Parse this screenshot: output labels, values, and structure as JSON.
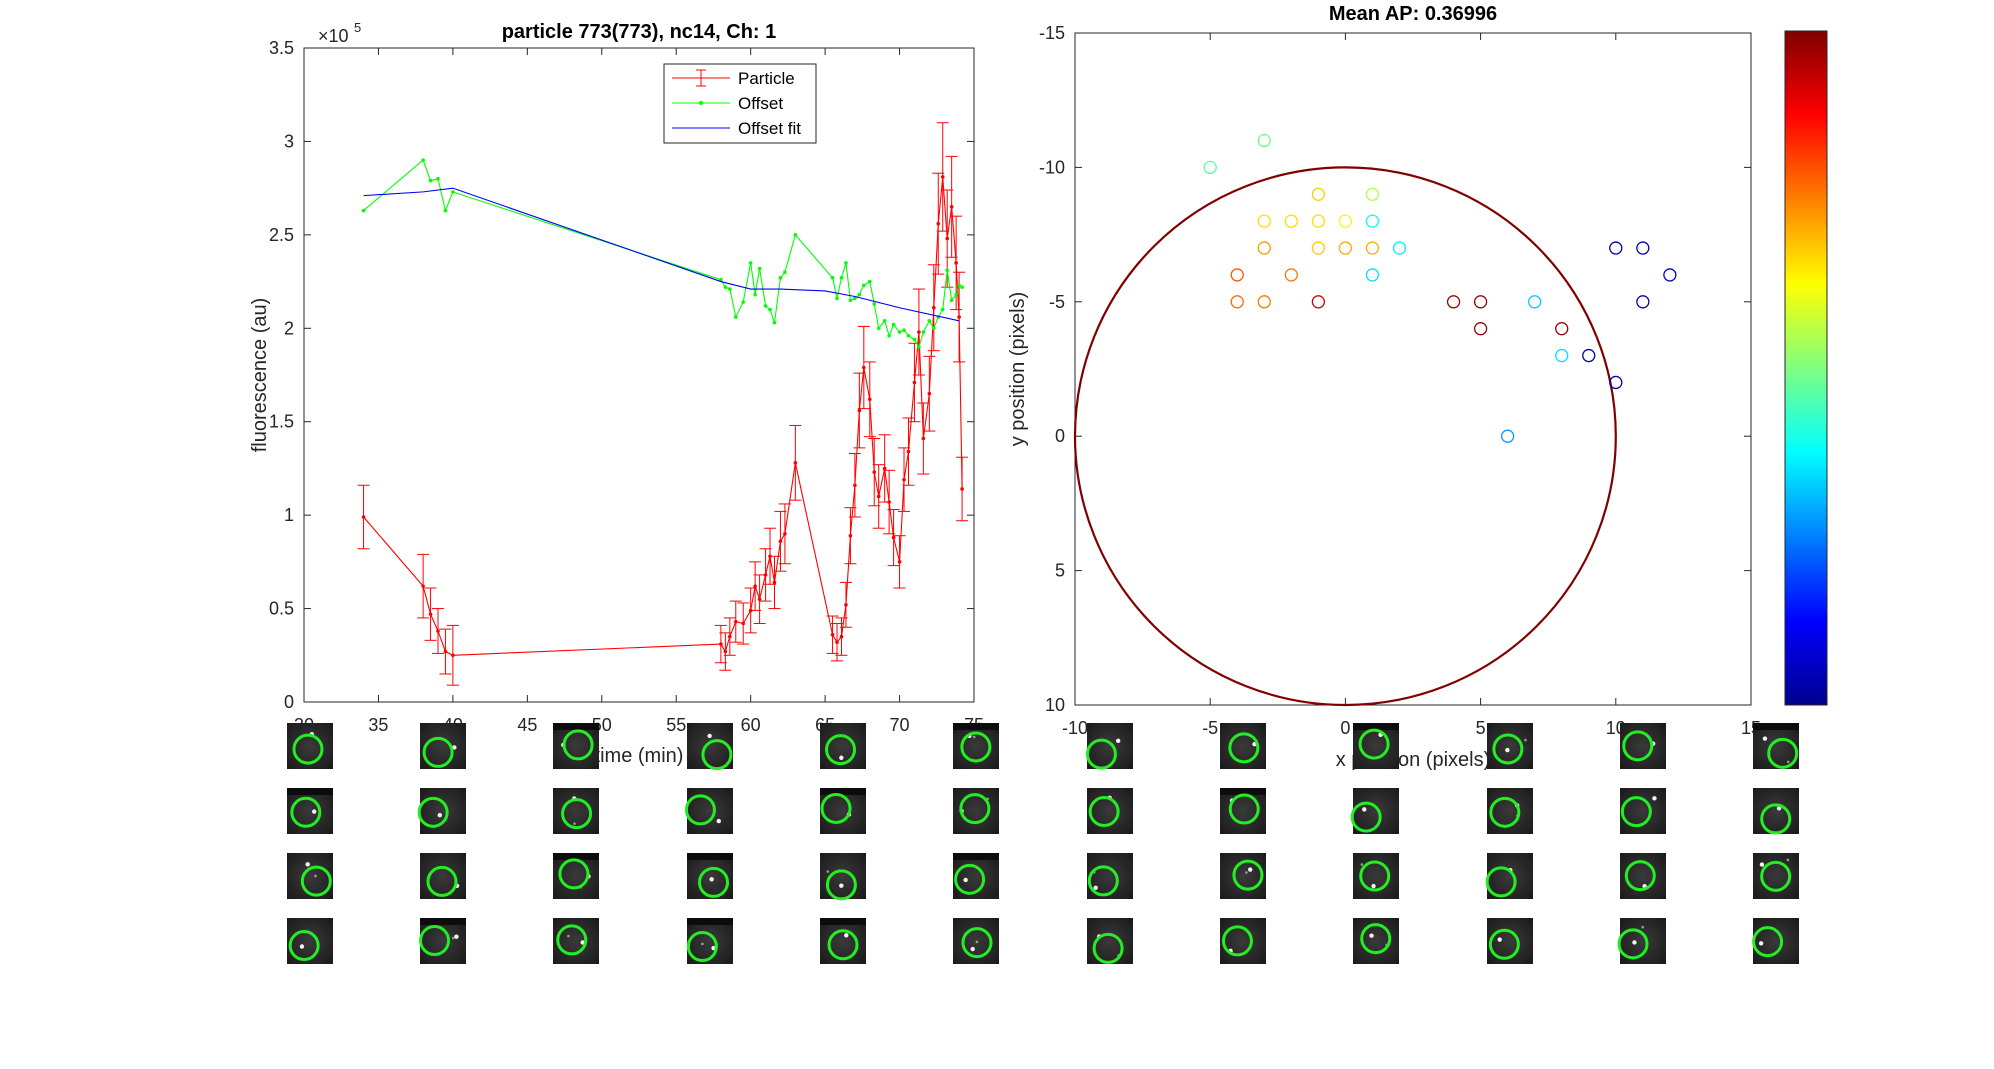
{
  "chart_data": [
    {
      "type": "line",
      "title": "particle 773(773), nc14, Ch: 1",
      "xlabel": "time (min)",
      "ylabel": "fluorescence (au)",
      "exponent_label": "×10",
      "exponent_power": "5",
      "xlim": [
        30,
        75
      ],
      "ylim": [
        0,
        3.5
      ],
      "xticks": [
        "30",
        "35",
        "40",
        "45",
        "50",
        "55",
        "60",
        "65",
        "70",
        "75"
      ],
      "yticks": [
        "0",
        "0.5",
        "1",
        "1.5",
        "2",
        "2.5",
        "3",
        "3.5"
      ],
      "legend_position": "top-center",
      "colors": {
        "particle": "#ff0000",
        "offset": "#00ff00",
        "offset_fit": "#0000ff"
      },
      "series": [
        {
          "name": "Particle",
          "key": "particle",
          "x": [
            34,
            38,
            38.5,
            39,
            39.5,
            40,
            58,
            58.3,
            58.6,
            59,
            59.5,
            60,
            60.3,
            60.6,
            61,
            61.3,
            61.6,
            62,
            62.3,
            63,
            65.5,
            65.8,
            66.1,
            66.4,
            66.7,
            67,
            67.3,
            67.6,
            68,
            68.3,
            68.6,
            69,
            69.3,
            69.6,
            70,
            70.3,
            70.6,
            71,
            71.3,
            71.6,
            72,
            72.3,
            72.6,
            72.9,
            73.2,
            73.5,
            73.8,
            74,
            74.2
          ],
          "y": [
            0.99,
            0.62,
            0.47,
            0.38,
            0.27,
            0.25,
            0.31,
            0.27,
            0.35,
            0.43,
            0.42,
            0.49,
            0.62,
            0.55,
            0.68,
            0.78,
            0.64,
            0.86,
            0.9,
            1.28,
            0.36,
            0.32,
            0.35,
            0.52,
            0.89,
            1.16,
            1.56,
            1.79,
            1.62,
            1.23,
            1.1,
            1.25,
            1.07,
            0.88,
            0.75,
            1.19,
            1.34,
            1.71,
            1.98,
            1.41,
            1.65,
            2.11,
            2.56,
            2.81,
            2.48,
            2.65,
            2.35,
            2.06,
            1.14
          ],
          "error": [
            0.17,
            0.17,
            0.14,
            0.12,
            0.12,
            0.16,
            0.1,
            0.1,
            0.1,
            0.11,
            0.11,
            0.12,
            0.13,
            0.13,
            0.14,
            0.15,
            0.14,
            0.16,
            0.16,
            0.2,
            0.1,
            0.1,
            0.1,
            0.12,
            0.15,
            0.17,
            0.2,
            0.22,
            0.2,
            0.18,
            0.17,
            0.18,
            0.17,
            0.15,
            0.14,
            0.17,
            0.18,
            0.21,
            0.23,
            0.19,
            0.2,
            0.23,
            0.27,
            0.29,
            0.26,
            0.27,
            0.25,
            0.24,
            0.17
          ]
        },
        {
          "name": "Offset",
          "key": "offset",
          "x": [
            34,
            38,
            38.5,
            39,
            39.5,
            40,
            58,
            58.3,
            58.6,
            59,
            59.5,
            60,
            60.3,
            60.6,
            61,
            61.3,
            61.6,
            62,
            62.3,
            63,
            65.5,
            65.8,
            66.1,
            66.4,
            66.7,
            67,
            67.3,
            67.6,
            68,
            68.3,
            68.6,
            69,
            69.3,
            69.6,
            70,
            70.3,
            70.6,
            71,
            71.3,
            71.6,
            72,
            72.3,
            72.6,
            72.9,
            73.2,
            73.5,
            73.8,
            74,
            74.2
          ],
          "y": [
            2.63,
            2.9,
            2.79,
            2.8,
            2.63,
            2.73,
            2.26,
            2.22,
            2.21,
            2.06,
            2.14,
            2.35,
            2.18,
            2.32,
            2.12,
            2.1,
            2.03,
            2.27,
            2.3,
            2.5,
            2.27,
            2.16,
            2.27,
            2.35,
            2.15,
            2.16,
            2.18,
            2.23,
            2.25,
            2.13,
            2.0,
            2.04,
            1.96,
            2.02,
            1.98,
            1.99,
            1.96,
            1.94,
            1.9,
            1.98,
            2.04,
            2.0,
            2.06,
            2.1,
            2.31,
            2.15,
            2.18,
            2.23,
            2.22
          ]
        },
        {
          "name": "Offset fit",
          "key": "offset_fit",
          "x": [
            34,
            38,
            40,
            58,
            60,
            62,
            65,
            67,
            70,
            74
          ],
          "y": [
            2.71,
            2.73,
            2.75,
            2.25,
            2.21,
            2.21,
            2.2,
            2.17,
            2.11,
            2.04
          ]
        }
      ]
    },
    {
      "type": "scatter",
      "title": "Mean AP: 0.36996",
      "xlabel": "x position (pixels)",
      "ylabel": "y position (pixels)",
      "xlim": [
        -10,
        15
      ],
      "ylim": [
        -15,
        10
      ],
      "y_reversed": true,
      "xticks": [
        "-10",
        "-5",
        "0",
        "5",
        "10",
        "15"
      ],
      "yticks": [
        "-15",
        "-10",
        "-5",
        "0",
        "5",
        "10"
      ],
      "colormap": "jet",
      "circle": {
        "center": [
          0,
          0
        ],
        "radius": 10,
        "color": "#800000"
      },
      "points": [
        {
          "x": -5,
          "y": -10,
          "color": "#55ffaa"
        },
        {
          "x": -3,
          "y": -11,
          "color": "#66ff88"
        },
        {
          "x": -1,
          "y": -9,
          "color": "#ffcc00"
        },
        {
          "x": 1,
          "y": -9,
          "color": "#aaff55"
        },
        {
          "x": -3,
          "y": -8,
          "color": "#ffdd00"
        },
        {
          "x": -2,
          "y": -8,
          "color": "#ffdd00"
        },
        {
          "x": -1,
          "y": -8,
          "color": "#ffdd00"
        },
        {
          "x": 0,
          "y": -8,
          "color": "#ffee22"
        },
        {
          "x": 1,
          "y": -8,
          "color": "#00ffee"
        },
        {
          "x": -3,
          "y": -7,
          "color": "#ff9900"
        },
        {
          "x": -1,
          "y": -7,
          "color": "#ffcc00"
        },
        {
          "x": 0,
          "y": -7,
          "color": "#ffaa00"
        },
        {
          "x": 1,
          "y": -7,
          "color": "#ffaa00"
        },
        {
          "x": 2,
          "y": -7,
          "color": "#00eeff"
        },
        {
          "x": -4,
          "y": -6,
          "color": "#ff5500"
        },
        {
          "x": -2,
          "y": -6,
          "color": "#ff7700"
        },
        {
          "x": 1,
          "y": -6,
          "color": "#00ddff"
        },
        {
          "x": -4,
          "y": -5,
          "color": "#ff6600"
        },
        {
          "x": -3,
          "y": -5,
          "color": "#ff7700"
        },
        {
          "x": -1,
          "y": -5,
          "color": "#cc0000"
        },
        {
          "x": 4,
          "y": -5,
          "color": "#990000"
        },
        {
          "x": 5,
          "y": -5,
          "color": "#990000"
        },
        {
          "x": 7,
          "y": -5,
          "color": "#00ccff"
        },
        {
          "x": 5,
          "y": -4,
          "color": "#990000"
        },
        {
          "x": 8,
          "y": -4,
          "color": "#990000"
        },
        {
          "x": 8,
          "y": -3,
          "color": "#00ddff"
        },
        {
          "x": 9,
          "y": -3,
          "color": "#000099"
        },
        {
          "x": 10,
          "y": -2,
          "color": "#0000aa"
        },
        {
          "x": 6,
          "y": 0,
          "color": "#0099ff"
        },
        {
          "x": 10,
          "y": -7,
          "color": "#0000aa"
        },
        {
          "x": 11,
          "y": -7,
          "color": "#0000aa"
        },
        {
          "x": 12,
          "y": -6,
          "color": "#0000cc"
        },
        {
          "x": 11,
          "y": -5,
          "color": "#0000aa"
        }
      ]
    }
  ],
  "thumbnails": {
    "rows": 4,
    "cols": 12,
    "ring_color": "#22ee22"
  }
}
